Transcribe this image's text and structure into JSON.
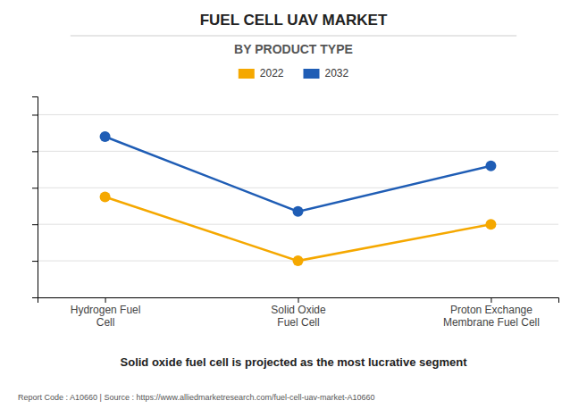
{
  "chart_data": {
    "type": "line",
    "title": "FUEL CELL UAV MARKET",
    "subtitle": "BY PRODUCT TYPE",
    "categories": [
      "Hydrogen Fuel\nCell",
      "Solid Oxide\nFuel Cell",
      "Proton Exchange\nMembrane Fuel Cell"
    ],
    "series": [
      {
        "name": "2022",
        "color": "#F5A800",
        "values": [
          55,
          20,
          40
        ]
      },
      {
        "name": "2032",
        "color": "#1F5DB5",
        "values": [
          88,
          47,
          72
        ]
      }
    ],
    "ylim": [
      0,
      110
    ],
    "yticks": [
      20,
      40,
      60,
      80,
      100
    ],
    "grid": true,
    "legend": "top",
    "marker": "circle",
    "tick_labels": "x",
    "annotations": [
      "Solid oxide fuel cell is projected as the most lucrative segment",
      "Report Code : A10660  |  Source : https://www.alliedmarketresearch.com/fuel-cell-uav-market-A10660"
    ]
  }
}
